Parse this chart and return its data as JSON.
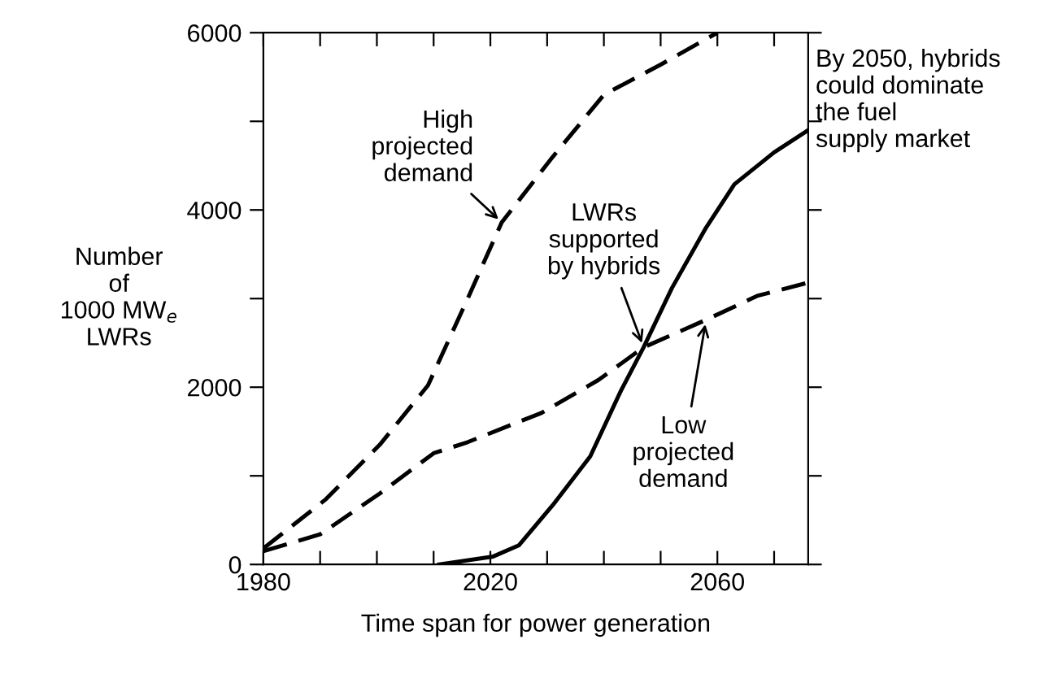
{
  "chart_data": {
    "type": "line",
    "xlabel": "Time span for power generation",
    "ylabel": "Number\nof\n1000 MW$_{e}$\nLWRs",
    "xlim": [
      1980,
      2076
    ],
    "ylim": [
      0,
      6000
    ],
    "xticks": [
      1980,
      {
        "value": 1990,
        "label": null
      },
      {
        "value": 2000,
        "label": null
      },
      {
        "value": 2010,
        "label": null
      },
      2020,
      {
        "value": 2030,
        "label": null
      },
      {
        "value": 2040,
        "label": null
      },
      {
        "value": 2050,
        "label": null
      },
      2060,
      {
        "value": 2070,
        "label": null
      }
    ],
    "yticks": [
      0,
      {
        "value": 1000,
        "label": null
      },
      2000,
      {
        "value": 3000,
        "label": null
      },
      4000,
      {
        "value": 5000,
        "label": null
      },
      6000
    ],
    "grid": false,
    "legend": false,
    "marker": "none",
    "series": [
      {
        "color": "#000000",
        "line_style": "dashed",
        "x": [
          1980,
          1991,
          2000.5,
          2009,
          2016,
          2022,
          2031,
          2040,
          2050,
          2060
        ],
        "values": [
          180,
          735,
          1350,
          2020,
          3000,
          3860,
          4600,
          5300,
          5640,
          6000
        ]
      },
      {
        "color": "#000000",
        "line_style": "dashed",
        "x": [
          1980,
          1990,
          2000.5,
          2010,
          2016,
          2029,
          2039,
          2047,
          2058,
          2067,
          2076
        ],
        "values": [
          150,
          340,
          800,
          1255,
          1380,
          1710,
          2080,
          2450,
          2760,
          3030,
          3180
        ]
      },
      {
        "color": "#000000",
        "line_style": "solid",
        "x": [
          2011,
          2020.5,
          2025,
          2031,
          2037.6,
          2043,
          2047,
          2052,
          2058,
          2063,
          2070,
          2076
        ],
        "values": [
          0,
          90,
          215,
          670,
          1220,
          1960,
          2450,
          3120,
          3800,
          4290,
          4650,
          4900
        ]
      }
    ],
    "annotations": [
      {
        "text": "High\nprojected\ndemand",
        "x": 2022,
        "y": 3860
      },
      {
        "text": "LWRs\nsupported\nby hybrids",
        "x": 2047,
        "y": 2450
      },
      {
        "text": "Low\nprojected\ndemand",
        "x": 2058,
        "y": 2760
      },
      "By 2050, hybrids\ncould dominate\nthe fuel\nsupply market"
    ]
  }
}
